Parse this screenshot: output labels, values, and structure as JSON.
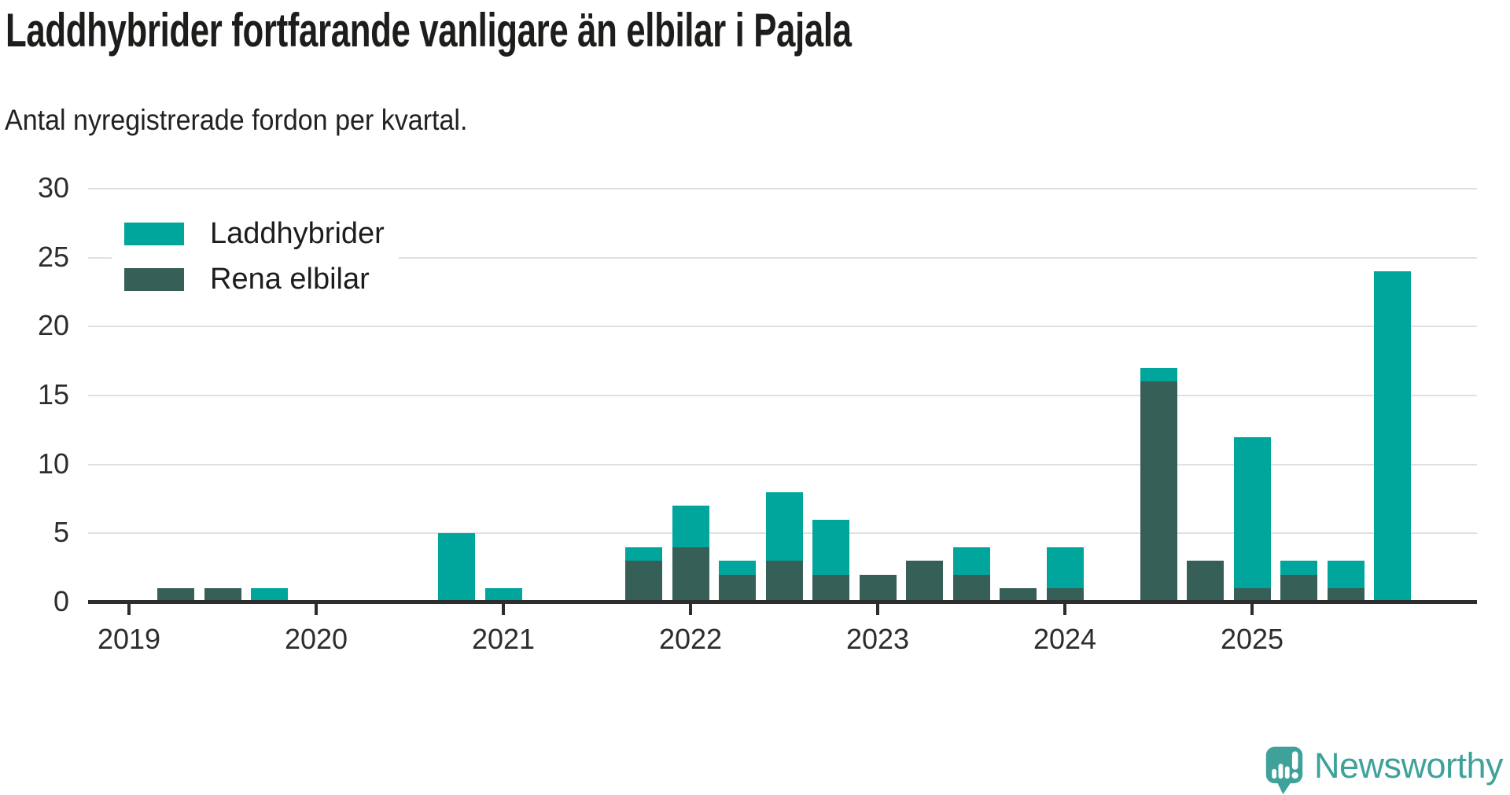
{
  "header": {
    "title": "Laddhybrider fortfarande vanligare än elbilar i Pajala",
    "subtitle": "Antal nyregistrerade fordon per kvartal."
  },
  "legend": {
    "items": [
      {
        "label": "Laddhybrider",
        "color": "#00a69c"
      },
      {
        "label": "Rena elbilar",
        "color": "#365f58"
      }
    ]
  },
  "chart_data": {
    "type": "bar",
    "stacked": true,
    "title": "Laddhybrider fortfarande vanligare än elbilar i Pajala",
    "subtitle": "Antal nyregistrerade fordon per kvartal.",
    "x": [
      "2019 Q1",
      "2019 Q2",
      "2019 Q3",
      "2019 Q4",
      "2020 Q1",
      "2020 Q2",
      "2020 Q3",
      "2020 Q4",
      "2021 Q1",
      "2021 Q2",
      "2021 Q3",
      "2021 Q4",
      "2022 Q1",
      "2022 Q2",
      "2022 Q3",
      "2022 Q4",
      "2023 Q1",
      "2023 Q2",
      "2023 Q3",
      "2023 Q4",
      "2024 Q1",
      "2024 Q2",
      "2024 Q3",
      "2024 Q4",
      "2025 Q1",
      "2025 Q2",
      "2025 Q3",
      "2025 Q4"
    ],
    "series": [
      {
        "name": "Laddhybrider",
        "color": "#00a69c",
        "stack_position": "top",
        "values": [
          0,
          0,
          0,
          1,
          0,
          0,
          0,
          5,
          1,
          0,
          0,
          1,
          3,
          1,
          5,
          4,
          0,
          0,
          2,
          0,
          3,
          0,
          1,
          0,
          11,
          1,
          2,
          24
        ]
      },
      {
        "name": "Rena elbilar",
        "color": "#365f58",
        "stack_position": "bottom",
        "values": [
          0,
          1,
          1,
          0,
          0,
          0,
          0,
          0,
          0,
          0,
          0,
          3,
          4,
          2,
          3,
          2,
          2,
          3,
          2,
          1,
          1,
          0,
          16,
          3,
          1,
          2,
          1,
          0
        ]
      }
    ],
    "ylim": [
      0,
      30
    ],
    "yticks": [
      0,
      5,
      10,
      15,
      20,
      25,
      30
    ],
    "xticks": {
      "labels": [
        "2019",
        "2020",
        "2021",
        "2022",
        "2023",
        "2024",
        "2025"
      ],
      "every": 4
    },
    "grid": "horizontal",
    "legend_position": "top-left"
  },
  "branding": {
    "name": "Newsworthy",
    "color": "#3ea29a"
  },
  "colors": {
    "background": "#ffffff",
    "axis": "#2d2d2d",
    "gridline": "#e0e0e0",
    "title_text": "#1d1d1b",
    "tick_label": "#2d2d2d"
  }
}
